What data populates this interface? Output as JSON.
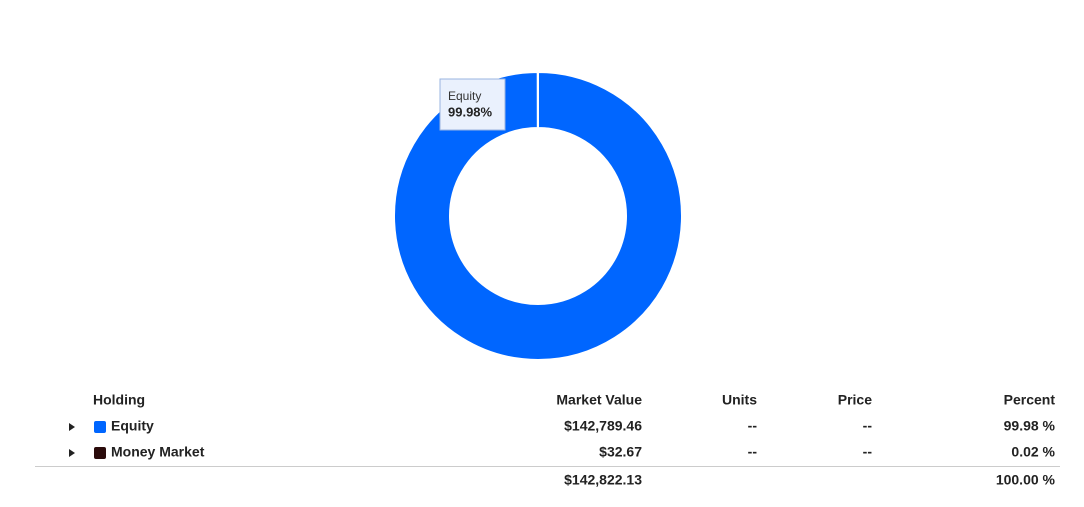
{
  "chart_data": {
    "type": "donut",
    "categories": [
      "Equity",
      "Money Market"
    ],
    "values": [
      99.98,
      0.02
    ],
    "colors": [
      "#0066ff",
      "#2b0b0b"
    ],
    "tooltip": {
      "name": "Equity",
      "text": "99.98%"
    }
  },
  "table": {
    "headers": [
      "Holding",
      "Market Value",
      "Units",
      "Price",
      "Percent"
    ],
    "rows": [
      [
        "Equity",
        "$142,789.46",
        "--",
        "--",
        "99.98 %"
      ],
      [
        "Money Market",
        "$32.67",
        "--",
        "--",
        "0.02 %"
      ]
    ],
    "total": {
      "market_value": "$142,822.13",
      "percent": "100.00 %"
    }
  }
}
